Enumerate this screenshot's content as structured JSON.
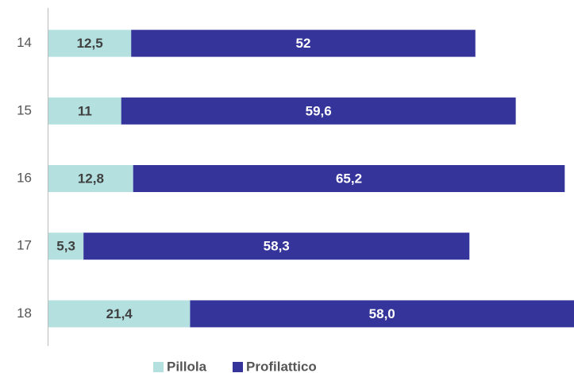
{
  "chart_data": {
    "type": "stacked_barh",
    "categories": [
      "14",
      "15",
      "16",
      "17",
      "18"
    ],
    "series": [
      {
        "name": "Pillola",
        "color": "#b4e0e0",
        "values": [
          12.5,
          11,
          12.8,
          5.3,
          21.4
        ],
        "value_labels": [
          "12,5",
          "11",
          "12,8",
          "5,3",
          "21,4"
        ],
        "label_color": "#404040"
      },
      {
        "name": "Profilattico",
        "color": "#34349a",
        "values": [
          52,
          59.6,
          65.2,
          58.3,
          58.0
        ],
        "value_labels": [
          "52",
          "59,6",
          "65,2",
          "58,3",
          "58,0"
        ],
        "label_color": "#ffffff"
      }
    ],
    "xlim": [
      0,
      79.4
    ]
  }
}
